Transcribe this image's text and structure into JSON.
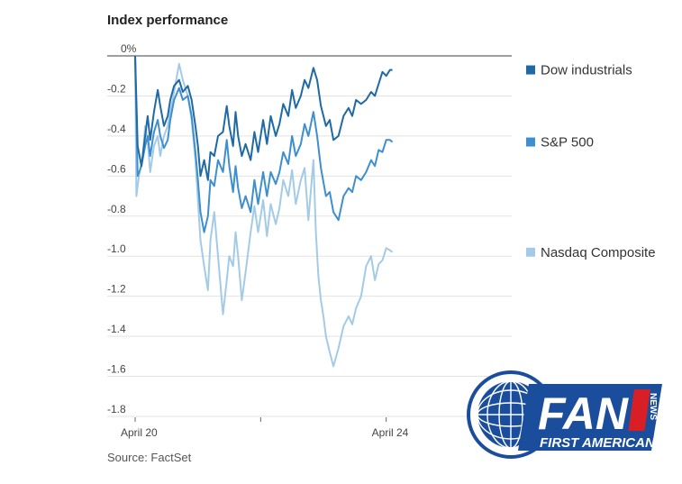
{
  "chart_data": {
    "type": "line",
    "title": "Index performance",
    "source": "Source: FactSet",
    "y_unit_label": "0%",
    "ylim": [
      -1.8,
      0
    ],
    "y_ticks": [
      0,
      -0.2,
      -0.4,
      -0.6,
      -0.8,
      -1.0,
      -1.2,
      -1.4,
      -1.6,
      -1.8
    ],
    "y_tick_labels": [
      "0%",
      "-0.2",
      "-0.4",
      "-0.6",
      "-0.8",
      "-1.0",
      "-1.2",
      "-1.4",
      "-1.6",
      "-1.8"
    ],
    "xlim": [
      0,
      3
    ],
    "x_ticks": [
      0,
      1,
      2
    ],
    "x_tick_labels": [
      "April 20",
      "",
      "April 24"
    ],
    "series": [
      {
        "name": "Dow industrials",
        "color": "#1f6aa5",
        "points": [
          [
            0,
            0
          ],
          [
            0.02,
            -0.45
          ],
          [
            0.05,
            -0.55
          ],
          [
            0.08,
            -0.4
          ],
          [
            0.1,
            -0.3
          ],
          [
            0.12,
            -0.42
          ],
          [
            0.15,
            -0.28
          ],
          [
            0.18,
            -0.17
          ],
          [
            0.2,
            -0.25
          ],
          [
            0.23,
            -0.35
          ],
          [
            0.26,
            -0.3
          ],
          [
            0.28,
            -0.22
          ],
          [
            0.31,
            -0.15
          ],
          [
            0.35,
            -0.12
          ],
          [
            0.38,
            -0.18
          ],
          [
            0.42,
            -0.15
          ],
          [
            0.45,
            -0.22
          ],
          [
            0.48,
            -0.35
          ],
          [
            0.5,
            -0.45
          ],
          [
            0.52,
            -0.6
          ],
          [
            0.55,
            -0.52
          ],
          [
            0.58,
            -0.62
          ],
          [
            0.6,
            -0.48
          ],
          [
            0.63,
            -0.5
          ],
          [
            0.66,
            -0.4
          ],
          [
            0.7,
            -0.38
          ],
          [
            0.73,
            -0.25
          ],
          [
            0.75,
            -0.35
          ],
          [
            0.78,
            -0.45
          ],
          [
            0.8,
            -0.28
          ],
          [
            0.82,
            -0.4
          ],
          [
            0.85,
            -0.5
          ],
          [
            0.88,
            -0.44
          ],
          [
            0.92,
            -0.52
          ],
          [
            0.95,
            -0.38
          ],
          [
            0.98,
            -0.48
          ],
          [
            1.02,
            -0.32
          ],
          [
            1.05,
            -0.44
          ],
          [
            1.08,
            -0.3
          ],
          [
            1.12,
            -0.4
          ],
          [
            1.15,
            -0.34
          ],
          [
            1.18,
            -0.24
          ],
          [
            1.22,
            -0.3
          ],
          [
            1.25,
            -0.17
          ],
          [
            1.28,
            -0.26
          ],
          [
            1.32,
            -0.2
          ],
          [
            1.35,
            -0.12
          ],
          [
            1.38,
            -0.16
          ],
          [
            1.42,
            -0.06
          ],
          [
            1.45,
            -0.12
          ],
          [
            1.48,
            -0.25
          ],
          [
            1.52,
            -0.35
          ],
          [
            1.55,
            -0.32
          ],
          [
            1.58,
            -0.42
          ],
          [
            1.62,
            -0.4
          ],
          [
            1.66,
            -0.3
          ],
          [
            1.7,
            -0.26
          ],
          [
            1.73,
            -0.3
          ],
          [
            1.76,
            -0.22
          ],
          [
            1.8,
            -0.24
          ],
          [
            1.84,
            -0.22
          ],
          [
            1.88,
            -0.18
          ],
          [
            1.91,
            -0.2
          ],
          [
            1.94,
            -0.14
          ],
          [
            1.97,
            -0.08
          ],
          [
            2.0,
            -0.1
          ],
          [
            2.03,
            -0.07
          ],
          [
            2.05,
            -0.07
          ]
        ]
      },
      {
        "name": "S&P 500",
        "color": "#3e8fcf",
        "points": [
          [
            0,
            0
          ],
          [
            0.02,
            -0.6
          ],
          [
            0.05,
            -0.55
          ],
          [
            0.08,
            -0.45
          ],
          [
            0.1,
            -0.4
          ],
          [
            0.12,
            -0.5
          ],
          [
            0.15,
            -0.38
          ],
          [
            0.18,
            -0.32
          ],
          [
            0.2,
            -0.4
          ],
          [
            0.23,
            -0.46
          ],
          [
            0.26,
            -0.42
          ],
          [
            0.28,
            -0.32
          ],
          [
            0.31,
            -0.22
          ],
          [
            0.35,
            -0.16
          ],
          [
            0.38,
            -0.22
          ],
          [
            0.42,
            -0.2
          ],
          [
            0.45,
            -0.3
          ],
          [
            0.48,
            -0.48
          ],
          [
            0.5,
            -0.62
          ],
          [
            0.52,
            -0.78
          ],
          [
            0.55,
            -0.88
          ],
          [
            0.58,
            -0.8
          ],
          [
            0.6,
            -0.62
          ],
          [
            0.63,
            -0.65
          ],
          [
            0.66,
            -0.52
          ],
          [
            0.7,
            -0.58
          ],
          [
            0.73,
            -0.42
          ],
          [
            0.75,
            -0.55
          ],
          [
            0.78,
            -0.68
          ],
          [
            0.8,
            -0.55
          ],
          [
            0.82,
            -0.66
          ],
          [
            0.85,
            -0.76
          ],
          [
            0.88,
            -0.7
          ],
          [
            0.92,
            -0.78
          ],
          [
            0.95,
            -0.62
          ],
          [
            0.98,
            -0.74
          ],
          [
            1.02,
            -0.58
          ],
          [
            1.05,
            -0.7
          ],
          [
            1.08,
            -0.58
          ],
          [
            1.12,
            -0.64
          ],
          [
            1.15,
            -0.58
          ],
          [
            1.18,
            -0.48
          ],
          [
            1.22,
            -0.54
          ],
          [
            1.25,
            -0.4
          ],
          [
            1.28,
            -0.5
          ],
          [
            1.32,
            -0.44
          ],
          [
            1.35,
            -0.34
          ],
          [
            1.38,
            -0.4
          ],
          [
            1.42,
            -0.28
          ],
          [
            1.45,
            -0.4
          ],
          [
            1.48,
            -0.56
          ],
          [
            1.52,
            -0.7
          ],
          [
            1.55,
            -0.68
          ],
          [
            1.58,
            -0.78
          ],
          [
            1.62,
            -0.82
          ],
          [
            1.66,
            -0.7
          ],
          [
            1.7,
            -0.66
          ],
          [
            1.73,
            -0.68
          ],
          [
            1.76,
            -0.6
          ],
          [
            1.8,
            -0.62
          ],
          [
            1.84,
            -0.58
          ],
          [
            1.88,
            -0.52
          ],
          [
            1.91,
            -0.55
          ],
          [
            1.94,
            -0.47
          ],
          [
            1.97,
            -0.48
          ],
          [
            2.0,
            -0.42
          ],
          [
            2.03,
            -0.42
          ],
          [
            2.05,
            -0.43
          ]
        ]
      },
      {
        "name": "Nasdaq Composite",
        "color": "#a3cbe6",
        "points": [
          [
            0,
            0
          ],
          [
            0.01,
            -0.7
          ],
          [
            0.03,
            -0.6
          ],
          [
            0.06,
            -0.5
          ],
          [
            0.08,
            -0.35
          ],
          [
            0.1,
            -0.42
          ],
          [
            0.12,
            -0.58
          ],
          [
            0.15,
            -0.45
          ],
          [
            0.18,
            -0.4
          ],
          [
            0.2,
            -0.5
          ],
          [
            0.23,
            -0.4
          ],
          [
            0.26,
            -0.35
          ],
          [
            0.28,
            -0.28
          ],
          [
            0.31,
            -0.18
          ],
          [
            0.35,
            -0.04
          ],
          [
            0.38,
            -0.12
          ],
          [
            0.42,
            -0.2
          ],
          [
            0.45,
            -0.32
          ],
          [
            0.48,
            -0.52
          ],
          [
            0.5,
            -0.72
          ],
          [
            0.52,
            -0.92
          ],
          [
            0.55,
            -1.05
          ],
          [
            0.58,
            -1.17
          ],
          [
            0.6,
            -0.92
          ],
          [
            0.63,
            -0.78
          ],
          [
            0.66,
            -1.0
          ],
          [
            0.7,
            -1.29
          ],
          [
            0.73,
            -1.12
          ],
          [
            0.75,
            -1.0
          ],
          [
            0.78,
            -1.05
          ],
          [
            0.8,
            -0.88
          ],
          [
            0.82,
            -1.0
          ],
          [
            0.85,
            -1.22
          ],
          [
            0.88,
            -1.08
          ],
          [
            0.92,
            -0.88
          ],
          [
            0.95,
            -0.75
          ],
          [
            0.98,
            -0.88
          ],
          [
            1.02,
            -0.72
          ],
          [
            1.05,
            -0.9
          ],
          [
            1.08,
            -0.74
          ],
          [
            1.12,
            -0.84
          ],
          [
            1.15,
            -0.76
          ],
          [
            1.18,
            -0.62
          ],
          [
            1.22,
            -0.7
          ],
          [
            1.25,
            -0.57
          ],
          [
            1.28,
            -0.74
          ],
          [
            1.32,
            -0.62
          ],
          [
            1.35,
            -0.56
          ],
          [
            1.38,
            -0.82
          ],
          [
            1.42,
            -0.52
          ],
          [
            1.44,
            -0.88
          ],
          [
            1.46,
            -1.1
          ],
          [
            1.48,
            -1.22
          ],
          [
            1.5,
            -1.3
          ],
          [
            1.52,
            -1.4
          ],
          [
            1.55,
            -1.48
          ],
          [
            1.58,
            -1.55
          ],
          [
            1.62,
            -1.46
          ],
          [
            1.66,
            -1.35
          ],
          [
            1.7,
            -1.3
          ],
          [
            1.73,
            -1.34
          ],
          [
            1.76,
            -1.26
          ],
          [
            1.8,
            -1.2
          ],
          [
            1.84,
            -1.05
          ],
          [
            1.88,
            -1.0
          ],
          [
            1.91,
            -1.12
          ],
          [
            1.94,
            -1.04
          ],
          [
            1.97,
            -1.02
          ],
          [
            2.0,
            -0.96
          ],
          [
            2.03,
            -0.97
          ],
          [
            2.05,
            -0.98
          ]
        ]
      }
    ]
  },
  "logo": {
    "wordmark": "FAN",
    "tagline": "FIRST AMERICAN",
    "badge": "NEWS",
    "color": "#1a4e9c",
    "accent": "#d81f26"
  }
}
